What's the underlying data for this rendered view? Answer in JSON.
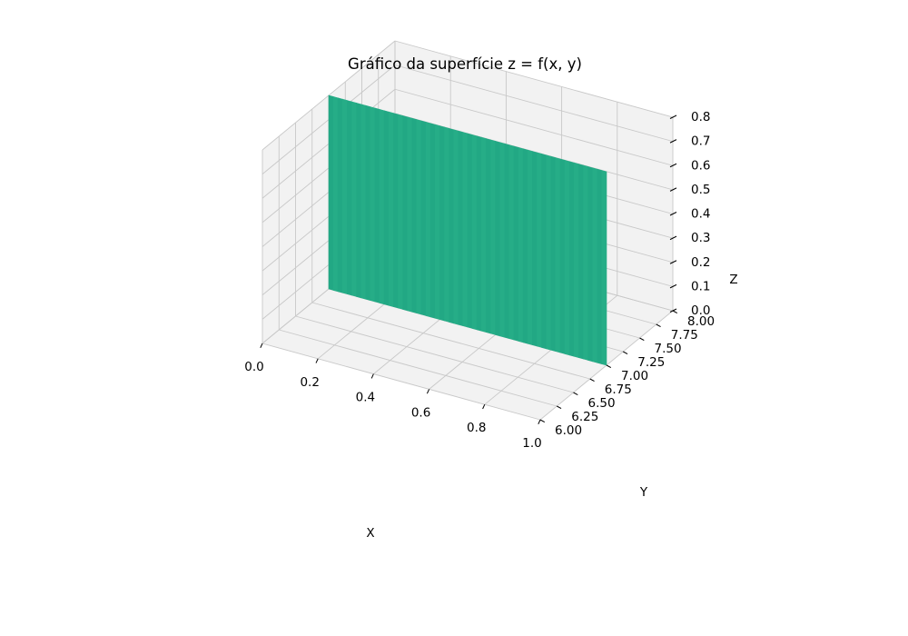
{
  "chart_data": {
    "type": "surface",
    "title": "Gráfico da superfície z = f(x, y)",
    "xlabel": "X",
    "ylabel": "Y",
    "zlabel": "Z",
    "xlim": [
      0.0,
      1.0
    ],
    "ylim": [
      6.0,
      8.0
    ],
    "zlim": [
      0.0,
      0.8
    ],
    "x_ticks": [
      "0.0",
      "0.2",
      "0.4",
      "0.6",
      "0.8",
      "1.0"
    ],
    "y_ticks": [
      "6.00",
      "6.25",
      "6.50",
      "6.75",
      "7.00",
      "7.25",
      "7.50",
      "7.75",
      "8.00"
    ],
    "z_ticks": [
      "0.0",
      "0.1",
      "0.2",
      "0.3",
      "0.4",
      "0.5",
      "0.6",
      "0.7",
      "0.8"
    ],
    "surface": {
      "color": "#22a884",
      "corners": [
        {
          "x": 0.0,
          "y": 7.0,
          "z": 0.0
        },
        {
          "x": 1.0,
          "y": 7.0,
          "z": 0.0
        },
        {
          "x": 1.0,
          "y": 7.0,
          "z": 0.8
        },
        {
          "x": 0.0,
          "y": 7.0,
          "z": 0.8
        }
      ]
    },
    "grid": true,
    "pane_color": "#f2f2f2"
  }
}
